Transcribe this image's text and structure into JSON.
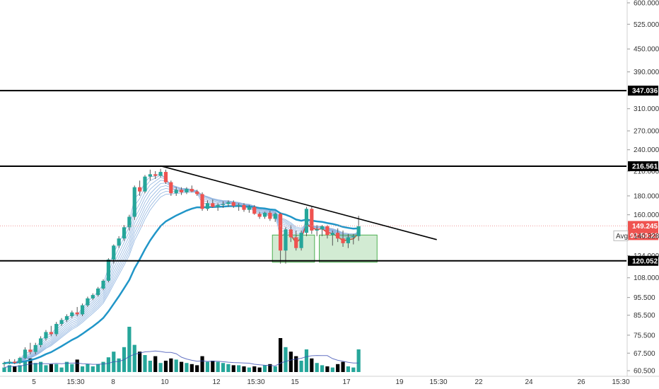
{
  "chart_data": {
    "type": "candlestick",
    "scale": "log",
    "ylim": [
      60,
      600
    ],
    "y_ticks": [
      "600.000",
      "525.000",
      "450.000",
      "390.000",
      "310.000",
      "270.000",
      "240.000",
      "210.000",
      "180.000",
      "160.000",
      "124.000",
      "108.000",
      "95.500",
      "85.500",
      "75.500",
      "67.500",
      "60.500"
    ],
    "y_tick_values": [
      600,
      525,
      450,
      390,
      310,
      270,
      240,
      210,
      180,
      160,
      124,
      108,
      95.5,
      85.5,
      75.5,
      67.5,
      60.5
    ],
    "x_ticks": [
      "5",
      "15:30",
      "8",
      "10",
      "12",
      "15:30",
      "15",
      "17",
      "19",
      "15:30",
      "22",
      "24",
      "26",
      "15:30"
    ],
    "level_lines": [
      {
        "value": 347.036,
        "label": "347.036"
      },
      {
        "value": 216.561,
        "label": "216.561"
      },
      {
        "value": 120.052,
        "label": "120.052"
      }
    ],
    "price_tag": {
      "value": 149.245,
      "label": "149.245",
      "countdown": "02:50:23",
      "color": "#ef5350"
    },
    "avg_tag": {
      "value": 140.328,
      "prefix": "Avg",
      "label": "140.328"
    },
    "trendline": {
      "from_bar": 30,
      "from_price": 217,
      "to_bar": 83,
      "to_price": 137
    },
    "boxes": [
      {
        "bar_from": 52,
        "bar_to": 59,
        "price_low": 119,
        "price_high": 141
      },
      {
        "bar_from": 61,
        "bar_to": 71,
        "price_low": 119,
        "price_high": 141
      }
    ],
    "candles": [
      [
        63,
        64,
        62,
        63.5
      ],
      [
        63.5,
        65,
        63,
        64
      ],
      [
        64,
        65,
        63,
        63.5
      ],
      [
        63.5,
        66,
        63,
        65.5
      ],
      [
        65.5,
        70,
        65,
        69
      ],
      [
        69,
        72,
        67,
        68
      ],
      [
        68,
        72,
        67,
        71
      ],
      [
        71,
        75,
        70,
        74
      ],
      [
        74,
        78,
        73,
        77
      ],
      [
        77,
        80,
        75,
        76
      ],
      [
        76,
        82,
        75,
        81
      ],
      [
        81,
        84,
        80,
        83
      ],
      [
        83,
        86,
        82,
        85
      ],
      [
        85,
        88,
        84,
        87
      ],
      [
        87,
        90,
        85,
        86
      ],
      [
        86,
        92,
        85,
        91
      ],
      [
        91,
        96,
        90,
        95
      ],
      [
        95,
        98,
        94,
        97
      ],
      [
        97,
        102,
        96,
        101
      ],
      [
        101,
        107,
        100,
        106
      ],
      [
        106,
        122,
        105,
        121
      ],
      [
        121,
        133,
        118,
        132
      ],
      [
        132,
        140,
        130,
        138
      ],
      [
        138,
        150,
        136,
        148
      ],
      [
        148,
        160,
        145,
        158
      ],
      [
        158,
        192,
        155,
        190
      ],
      [
        190,
        198,
        180,
        185
      ],
      [
        185,
        205,
        183,
        203
      ],
      [
        203,
        212,
        198,
        206
      ],
      [
        206,
        210,
        200,
        204
      ],
      [
        204,
        213,
        202,
        209
      ],
      [
        209,
        212,
        194,
        196
      ],
      [
        196,
        198,
        180,
        183
      ],
      [
        183,
        190,
        180,
        187
      ],
      [
        187,
        190,
        181,
        184
      ],
      [
        184,
        190,
        182,
        188
      ],
      [
        188,
        192,
        184,
        185
      ],
      [
        185,
        187,
        180,
        182
      ],
      [
        182,
        184,
        164,
        166
      ],
      [
        166,
        175,
        164,
        172
      ],
      [
        172,
        176,
        167,
        168
      ],
      [
        168,
        172,
        164,
        170
      ],
      [
        170,
        174,
        167,
        171
      ],
      [
        171,
        175,
        168,
        173
      ],
      [
        173,
        175,
        167,
        169
      ],
      [
        169,
        172,
        164,
        170
      ],
      [
        170,
        172,
        163,
        165
      ],
      [
        165,
        170,
        162,
        168
      ],
      [
        168,
        170,
        160,
        161
      ],
      [
        161,
        163,
        156,
        158
      ],
      [
        158,
        163,
        156,
        162
      ],
      [
        162,
        164,
        154,
        156
      ],
      [
        156,
        162,
        153,
        161
      ],
      [
        161,
        162,
        118,
        128
      ],
      [
        128,
        148,
        118,
        146
      ],
      [
        146,
        150,
        135,
        139
      ],
      [
        139,
        145,
        128,
        130
      ],
      [
        130,
        145,
        128,
        143
      ],
      [
        143,
        168,
        140,
        166
      ],
      [
        166,
        168,
        142,
        145
      ],
      [
        145,
        150,
        140,
        146
      ],
      [
        146,
        150,
        140,
        149
      ],
      [
        149,
        150,
        138,
        141
      ],
      [
        141,
        145,
        132,
        143
      ],
      [
        143,
        147,
        135,
        138
      ],
      [
        138,
        145,
        131,
        134
      ],
      [
        134,
        142,
        130,
        139
      ],
      [
        139,
        142,
        133,
        140
      ],
      [
        140,
        159,
        136,
        149
      ]
    ],
    "volume": [
      4,
      6,
      5,
      6,
      10,
      12,
      8,
      9,
      6,
      7,
      7,
      4,
      9,
      7,
      11,
      5,
      7,
      5,
      7,
      9,
      13,
      18,
      12,
      22,
      40,
      24,
      18,
      15,
      10,
      14,
      8,
      10,
      12,
      11,
      9,
      8,
      7,
      6,
      14,
      9,
      10,
      9,
      8,
      7,
      6,
      6,
      5,
      4,
      5,
      4,
      6,
      7,
      5,
      30,
      22,
      18,
      14,
      10,
      20,
      12,
      8,
      6,
      5,
      4,
      7,
      9,
      5,
      4,
      20
    ],
    "volume_up": [
      true,
      true,
      false,
      true,
      true,
      false,
      true,
      true,
      true,
      false,
      true,
      true,
      true,
      true,
      false,
      true,
      true,
      true,
      true,
      true,
      true,
      true,
      true,
      true,
      true,
      true,
      false,
      true,
      true,
      false,
      true,
      false,
      false,
      true,
      false,
      true,
      false,
      false,
      false,
      true,
      false,
      true,
      true,
      true,
      false,
      true,
      false,
      true,
      false,
      false,
      true,
      false,
      true,
      false,
      true,
      false,
      false,
      true,
      true,
      false,
      true,
      true,
      false,
      true,
      false,
      false,
      true,
      true,
      true
    ],
    "colors": {
      "up": "#26a69a",
      "down": "#ef5350",
      "volume_up": "#26a69a",
      "volume_down": "#000000",
      "ribbon": "#90b4e0",
      "ema": "#2196c8",
      "ma_red": "#e53935",
      "box": "#4caf50"
    }
  }
}
